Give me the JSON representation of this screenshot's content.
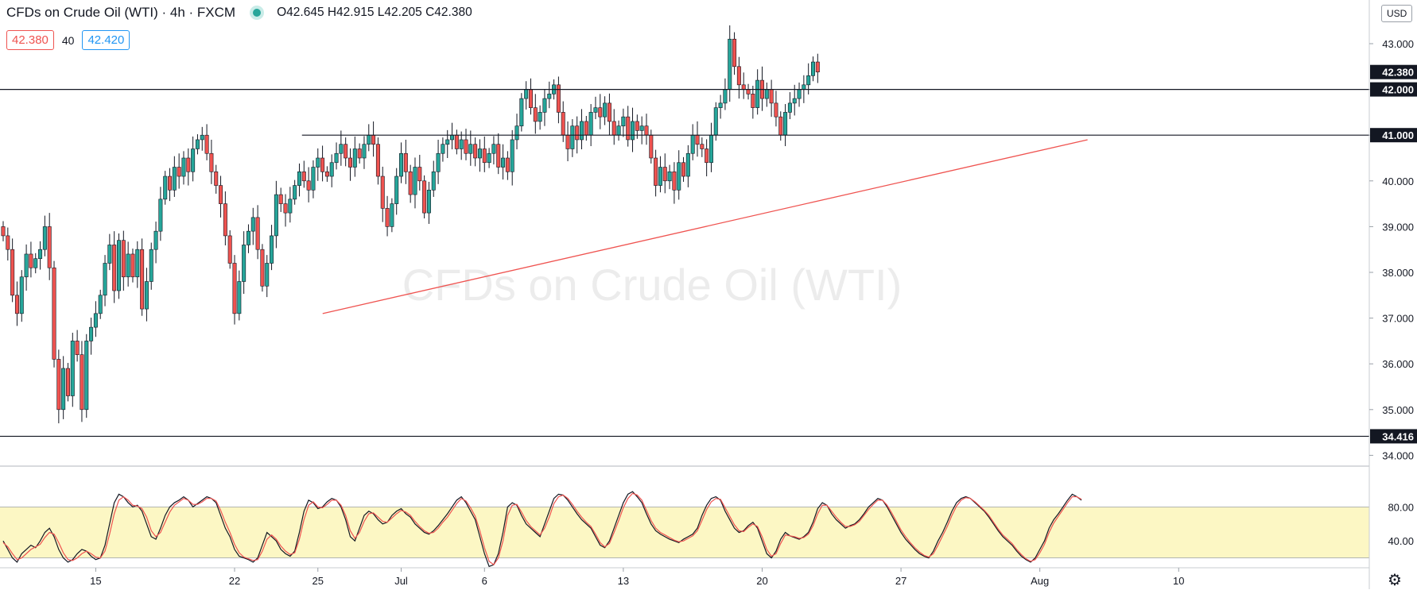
{
  "header": {
    "symbol_title": "CFDs on Crude Oil (WTI) · 4h · FXCM",
    "ohlc": "O42.645  H42.915  L42.205  C42.380",
    "bid": "42.380",
    "spread": "40",
    "ask": "42.420",
    "currency_button": "USD"
  },
  "colors": {
    "up_candle": "#26a69a",
    "down_candle": "#ef5350",
    "trendline": "#ef5350",
    "stoch_k": "#131722",
    "stoch_d": "#ef5350",
    "stoch_band": "#fcf7c4"
  },
  "icons": {
    "settings": "gear-icon"
  },
  "chart_data": [
    {
      "type": "candlestick",
      "title": "CFDs on Crude Oil (WTI) · 4h · FXCM",
      "ylim": [
        33.8,
        43.9
      ],
      "y_ticks": [
        "34.000",
        "35.000",
        "36.000",
        "37.000",
        "38.000",
        "39.000",
        "40.000",
        "41.000",
        "42.000",
        "43.000"
      ],
      "x_ticks": [
        {
          "label": "15",
          "i": 20
        },
        {
          "label": "22",
          "i": 50
        },
        {
          "label": "25",
          "i": 68
        },
        {
          "label": "Jul",
          "i": 86
        },
        {
          "label": "6",
          "i": 104
        },
        {
          "label": "13",
          "i": 134
        },
        {
          "label": "20",
          "i": 164
        },
        {
          "label": "27",
          "i": 194
        },
        {
          "label": "Aug",
          "i": 224
        },
        {
          "label": "10",
          "i": 254
        }
      ],
      "close": [
        38.8,
        38.5,
        37.5,
        37.1,
        37.9,
        38.4,
        38.1,
        38.3,
        38.5,
        39.0,
        38.1,
        36.1,
        35.0,
        35.9,
        35.3,
        36.5,
        36.2,
        35.0,
        36.5,
        36.8,
        37.1,
        37.5,
        38.2,
        38.6,
        37.6,
        38.7,
        37.9,
        38.4,
        37.9,
        38.5,
        37.2,
        37.8,
        38.5,
        38.9,
        39.6,
        40.1,
        39.8,
        40.3,
        40.1,
        40.5,
        40.2,
        40.7,
        40.9,
        41.0,
        40.6,
        40.2,
        39.9,
        39.5,
        38.8,
        38.2,
        37.1,
        37.8,
        38.6,
        38.9,
        39.2,
        38.5,
        37.7,
        38.2,
        38.8,
        39.7,
        39.5,
        39.3,
        39.6,
        39.9,
        40.2,
        40.0,
        39.8,
        40.3,
        40.5,
        40.2,
        40.1,
        40.4,
        40.6,
        40.8,
        40.5,
        40.3,
        40.7,
        40.5,
        40.8,
        41.0,
        40.8,
        40.1,
        39.4,
        39.0,
        39.5,
        40.1,
        40.6,
        40.2,
        39.7,
        40.3,
        40.0,
        39.3,
        39.8,
        40.2,
        40.6,
        40.8,
        40.9,
        41.0,
        40.7,
        40.9,
        40.6,
        40.8,
        40.5,
        40.7,
        40.4,
        40.6,
        40.8,
        40.3,
        40.5,
        40.2,
        40.9,
        41.2,
        41.8,
        42.0,
        41.6,
        41.3,
        41.5,
        41.8,
        41.9,
        42.1,
        41.5,
        41.0,
        40.7,
        41.2,
        40.9,
        41.3,
        41.0,
        41.5,
        41.6,
        41.4,
        41.7,
        41.3,
        41.0,
        41.2,
        41.4,
        40.9,
        41.3,
        41.1,
        41.2,
        41.0,
        40.5,
        39.9,
        40.3,
        40.0,
        40.2,
        39.8,
        40.4,
        40.1,
        40.6,
        41.0,
        40.8,
        40.7,
        40.4,
        41.0,
        41.6,
        41.7,
        42.0,
        43.1,
        42.5,
        42.1,
        42.0,
        41.9,
        41.6,
        42.2,
        41.8,
        42.0,
        41.7,
        41.4,
        41.0,
        41.5,
        41.7,
        41.8,
        42.0,
        42.1,
        42.3,
        42.6,
        42.38
      ],
      "last_price": 42.38,
      "horizontal_levels": [
        {
          "price": 42.0,
          "label": "42.000"
        },
        {
          "price": 41.0,
          "label": "41.000"
        },
        {
          "price": 34.416,
          "label": "34.416"
        }
      ],
      "trendlines": [
        {
          "from_i": 68,
          "from_price": 37.1,
          "to_i": 224,
          "to_price": 40.9
        }
      ],
      "price_labels": [
        {
          "price": 42.38,
          "label": "42.380"
        },
        {
          "price": 42.0,
          "label": "42.000"
        },
        {
          "price": 41.0,
          "label": "41.000"
        },
        {
          "price": 34.416,
          "label": "34.416"
        }
      ],
      "watermark": "CFDs on Crude Oil (WTI)"
    },
    {
      "type": "line",
      "ylim": [
        0,
        100
      ],
      "y_ticks": [
        "80.00",
        "40.00"
      ],
      "band": [
        20,
        80
      ],
      "series": [
        {
          "key": "k",
          "values": [
            40,
            30,
            20,
            15,
            25,
            30,
            35,
            32,
            40,
            50,
            55,
            45,
            30,
            20,
            15,
            18,
            25,
            30,
            28,
            22,
            18,
            20,
            35,
            60,
            85,
            95,
            92,
            85,
            80,
            82,
            75,
            60,
            45,
            42,
            55,
            70,
            80,
            85,
            88,
            92,
            88,
            80,
            84,
            88,
            92,
            90,
            85,
            70,
            55,
            45,
            30,
            22,
            20,
            18,
            15,
            20,
            35,
            50,
            45,
            40,
            30,
            25,
            22,
            28,
            50,
            75,
            88,
            85,
            78,
            80,
            86,
            90,
            88,
            80,
            65,
            45,
            40,
            55,
            70,
            75,
            72,
            65,
            60,
            62,
            70,
            75,
            78,
            72,
            68,
            60,
            55,
            50,
            48,
            52,
            58,
            65,
            72,
            80,
            88,
            92,
            85,
            75,
            65,
            45,
            25,
            10,
            12,
            25,
            50,
            80,
            85,
            82,
            70,
            60,
            55,
            50,
            45,
            60,
            75,
            90,
            95,
            94,
            88,
            80,
            72,
            65,
            60,
            55,
            45,
            35,
            32,
            40,
            55,
            70,
            85,
            95,
            98,
            92,
            85,
            72,
            60,
            52,
            48,
            45,
            42,
            40,
            38,
            42,
            45,
            48,
            55,
            70,
            82,
            90,
            92,
            88,
            75,
            65,
            55,
            50,
            52,
            58,
            62,
            55,
            40,
            25,
            20,
            28,
            42,
            50,
            46,
            44,
            42,
            45,
            50,
            62,
            78,
            85,
            82,
            72,
            65,
            60,
            55,
            58,
            60,
            65,
            72,
            80,
            85,
            90,
            88,
            80,
            70,
            60,
            50,
            42,
            36,
            30,
            25,
            22,
            20,
            28,
            40,
            50,
            62,
            75,
            85,
            90,
            92,
            90,
            85,
            80,
            75,
            68,
            60,
            52,
            45,
            40,
            35,
            28,
            22,
            18,
            15,
            20,
            30,
            40,
            55,
            65,
            72,
            80,
            88,
            95,
            92,
            88
          ]
        },
        {
          "key": "d",
          "values": [
            38,
            33,
            25,
            18,
            20,
            25,
            30,
            33,
            36,
            44,
            50,
            48,
            38,
            26,
            18,
            17,
            20,
            25,
            28,
            25,
            21,
            20,
            28,
            48,
            72,
            88,
            92,
            88,
            82,
            81,
            78,
            68,
            52,
            45,
            50,
            62,
            74,
            82,
            86,
            90,
            88,
            83,
            83,
            86,
            90,
            90,
            87,
            76,
            62,
            50,
            36,
            26,
            21,
            19,
            17,
            18,
            28,
            42,
            47,
            42,
            34,
            28,
            24,
            26,
            42,
            65,
            82,
            86,
            80,
            79,
            83,
            88,
            88,
            82,
            70,
            52,
            43,
            50,
            63,
            72,
            73,
            68,
            63,
            62,
            67,
            72,
            76,
            74,
            70,
            63,
            57,
            52,
            49,
            50,
            55,
            62,
            68,
            76,
            84,
            90,
            87,
            79,
            69,
            52,
            32,
            16,
            12,
            20,
            40,
            70,
            82,
            83,
            74,
            64,
            57,
            52,
            47,
            55,
            68,
            84,
            92,
            94,
            90,
            83,
            75,
            68,
            62,
            57,
            48,
            38,
            33,
            37,
            50,
            64,
            79,
            90,
            96,
            94,
            88,
            76,
            64,
            55,
            50,
            47,
            44,
            41,
            39,
            40,
            43,
            46,
            52,
            64,
            77,
            86,
            90,
            89,
            79,
            69,
            59,
            52,
            51,
            56,
            60,
            57,
            45,
            30,
            22,
            25,
            37,
            47,
            46,
            45,
            43,
            44,
            48,
            58,
            72,
            82,
            82,
            75,
            68,
            62,
            57,
            57,
            59,
            63,
            70,
            77,
            83,
            88,
            88,
            82,
            73,
            63,
            53,
            45,
            38,
            32,
            27,
            23,
            21,
            25,
            35,
            46,
            57,
            70,
            81,
            88,
            91,
            90,
            86,
            81,
            76,
            70,
            62,
            54,
            47,
            42,
            37,
            30,
            24,
            19,
            16,
            18,
            26,
            36,
            50,
            61,
            69,
            77,
            85,
            92,
            92,
            89
          ]
        }
      ]
    }
  ]
}
